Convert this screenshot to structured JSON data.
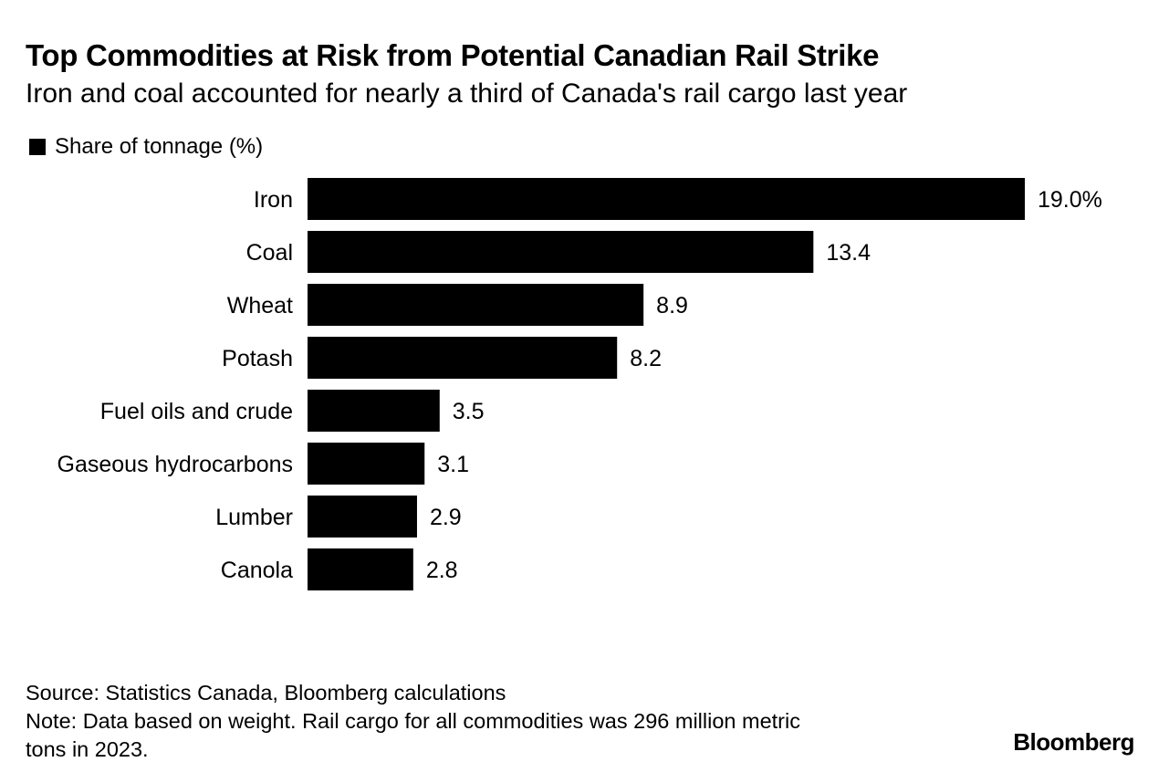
{
  "header": {
    "title": "Top Commodities at Risk from Potential Canadian Rail Strike",
    "subtitle": "Iron and coal accounted for nearly a third of Canada's rail cargo last year"
  },
  "legend": {
    "label": "Share of tonnage (%)"
  },
  "chart_data": {
    "type": "bar",
    "orientation": "horizontal",
    "title": "Top Commodities at Risk from Potential Canadian Rail Strike",
    "subtitle": "Iron and coal accounted for nearly a third of Canada's rail cargo last year",
    "categories": [
      "Iron",
      "Coal",
      "Wheat",
      "Potash",
      "Fuel oils and crude",
      "Gaseous hydrocarbons",
      "Lumber",
      "Canola"
    ],
    "series": [
      {
        "name": "Share of tonnage (%)",
        "values": [
          19.0,
          13.4,
          8.9,
          8.2,
          3.5,
          3.1,
          2.9,
          2.8
        ]
      }
    ],
    "value_labels": [
      "19.0%",
      "13.4",
      "8.9",
      "8.2",
      "3.5",
      "3.1",
      "2.9",
      "2.8"
    ],
    "xlim": [
      0,
      19.0
    ],
    "legend_position": "top-left",
    "grid": false,
    "bar_color": "#000000"
  },
  "footer": {
    "source": "Source: Statistics Canada, Bloomberg calculations",
    "note_line1": "Note: Data based on weight. Rail cargo for all commodities was 296 million metric",
    "note_line2": "tons in 2023."
  },
  "brand": "Bloomberg"
}
